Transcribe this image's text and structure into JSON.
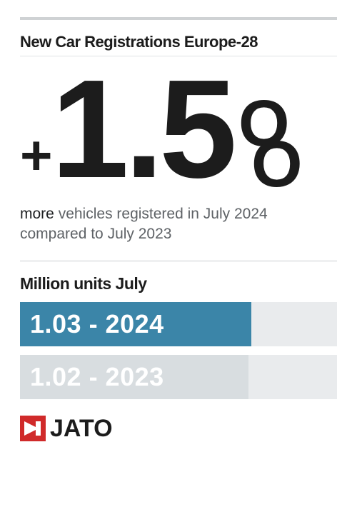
{
  "colors": {
    "text_dark": "#1c1c1c",
    "text_sub": "#5e6266",
    "rule": "#cfd2d4",
    "bar_track": "#e9ebed",
    "logo_red": "#d02a2a"
  },
  "header": {
    "title": "New Car Registrations Europe-28",
    "title_fontsize": 22
  },
  "headline_stat": {
    "plus": "+",
    "value": "1.5",
    "percent_o": "O",
    "percent_slash": "O",
    "value_fontsize": 196,
    "color": "#1c1c1c"
  },
  "subline": {
    "emph": "more",
    "rest": " vehicles registered in July 2024 compared to July 2023"
  },
  "chart": {
    "section_title": "Million units July",
    "section_title_fontsize": 23,
    "type": "bar",
    "track_color": "#e9ebed",
    "bars": [
      {
        "label": "1.03 - 2024",
        "width_pct": 73,
        "fill": "#3b85a8",
        "text_color": "#ffffff"
      },
      {
        "label": "1.02 - 2023",
        "width_pct": 72,
        "fill": "#d8dde0",
        "text_color": "#ffffff"
      }
    ]
  },
  "logo": {
    "text": "JATO"
  }
}
